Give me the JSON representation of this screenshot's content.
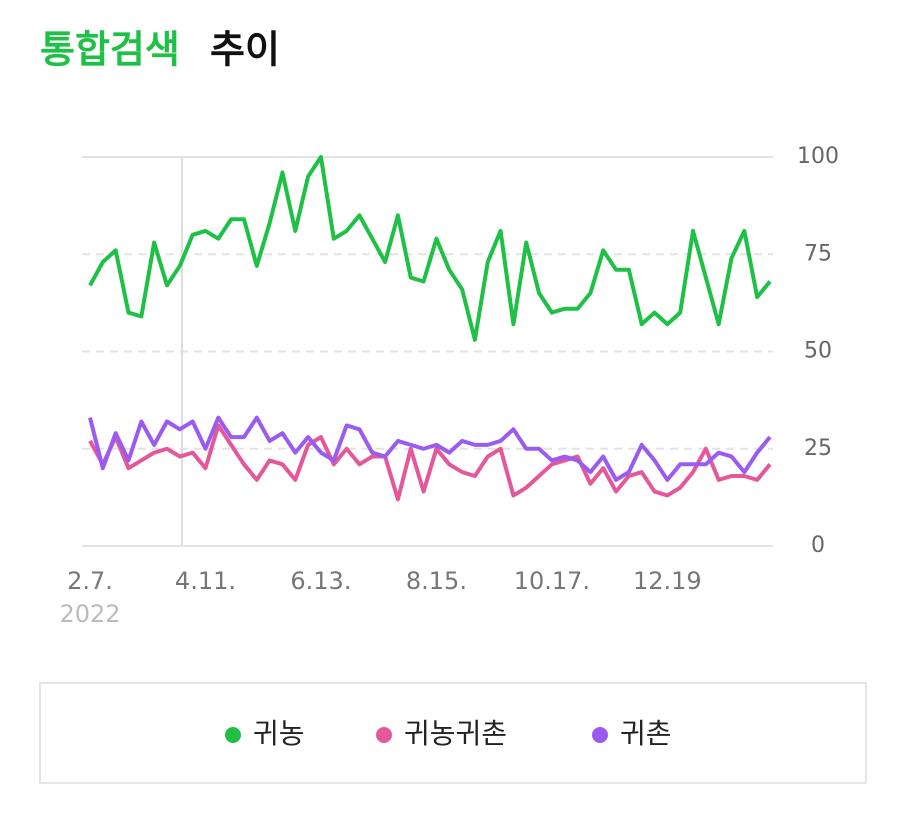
{
  "chart_data": {
    "type": "line",
    "title_highlight": "통합검색",
    "title": "추이",
    "categories": [
      "2.7.",
      null,
      null,
      null,
      null,
      null,
      null,
      null,
      null,
      "4.11.",
      null,
      null,
      null,
      null,
      null,
      null,
      null,
      null,
      "6.13.",
      null,
      null,
      null,
      null,
      null,
      null,
      null,
      null,
      "8.15.",
      null,
      null,
      null,
      null,
      null,
      null,
      null,
      null,
      "10.17.",
      null,
      null,
      null,
      null,
      null,
      null,
      null,
      null,
      "12.19",
      null,
      null,
      null,
      null,
      null,
      null,
      null,
      null
    ],
    "x_year": "2022",
    "series": [
      {
        "name": "귀농",
        "color": "#1ec146",
        "values": [
          67,
          73,
          76,
          60,
          59,
          78,
          67,
          72,
          80,
          81,
          79,
          84,
          84,
          72,
          83,
          96,
          81,
          95,
          100,
          79,
          81,
          85,
          79,
          73,
          85,
          69,
          68,
          79,
          71,
          66,
          53,
          73,
          81,
          57,
          78,
          65,
          60,
          61,
          61,
          65,
          76,
          71,
          71,
          57,
          60,
          57,
          60,
          81,
          69,
          57,
          74,
          81,
          64,
          68
        ]
      },
      {
        "name": "귀농귀촌",
        "color": "#e4589b",
        "values": [
          27,
          21,
          28,
          20,
          22,
          24,
          25,
          23,
          24,
          20,
          31,
          26,
          21,
          17,
          22,
          21,
          17,
          26,
          28,
          21,
          25,
          21,
          23,
          23,
          12,
          25,
          14,
          25,
          21,
          19,
          18,
          23,
          25,
          13,
          15,
          18,
          21,
          22,
          23,
          16,
          20,
          14,
          18,
          19,
          14,
          13,
          15,
          19,
          25,
          17,
          18,
          18,
          17,
          21
        ]
      },
      {
        "name": "귀촌",
        "color": "#9a5cf0",
        "values": [
          33,
          20,
          29,
          22,
          32,
          26,
          32,
          30,
          32,
          25,
          33,
          28,
          28,
          33,
          27,
          29,
          24,
          28,
          24,
          22,
          31,
          30,
          24,
          23,
          27,
          26,
          25,
          26,
          24,
          27,
          26,
          26,
          27,
          30,
          25,
          25,
          22,
          23,
          22,
          19,
          23,
          17,
          19,
          26,
          22,
          17,
          21,
          21,
          21,
          24,
          23,
          19,
          24,
          28
        ]
      }
    ],
    "ylim": [
      0,
      100
    ],
    "yticks": [
      0,
      25,
      50,
      75,
      100
    ],
    "grid": true
  }
}
